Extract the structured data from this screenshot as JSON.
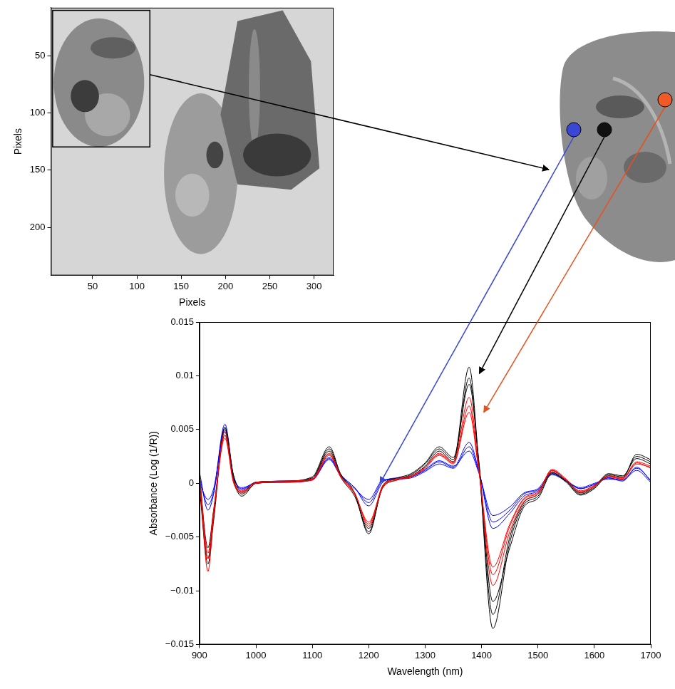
{
  "chart_data": [
    {
      "type": "image",
      "xlabel": "Pixels",
      "ylabel": "Pixels",
      "xlim": [
        3,
        322
      ],
      "xticks": [
        50,
        100,
        150,
        200,
        250,
        300
      ],
      "ylim": [
        242,
        8
      ],
      "yticks": [
        50,
        100,
        150,
        200
      ],
      "grid": false
    },
    {
      "type": "line",
      "xlabel": "Wavelength (nm)",
      "ylabel": "Absorbance (Log (1/R))",
      "x": [
        900,
        915,
        925,
        945,
        960,
        975,
        1000,
        1050,
        1100,
        1130,
        1150,
        1175,
        1200,
        1225,
        1250,
        1275,
        1300,
        1325,
        1350,
        1378,
        1395,
        1420,
        1450,
        1475,
        1500,
        1525,
        1550,
        1575,
        1600,
        1625,
        1650,
        1675,
        1700
      ],
      "xlim": [
        900,
        1700
      ],
      "xticks": [
        900,
        1000,
        1100,
        1200,
        1300,
        1400,
        1500,
        1600,
        1700
      ],
      "ylim": [
        -0.015,
        0.015
      ],
      "yticks": [
        {
          "value": -0.015,
          "label": "−0.015"
        },
        {
          "value": -0.01,
          "label": "−0.01"
        },
        {
          "value": -0.005,
          "label": "−0.005"
        },
        0,
        0.005,
        0.01,
        0.015
      ],
      "grid": false,
      "series": [
        {
          "color": "#ff0000",
          "values": [
            0.001,
            -0.0082,
            -0.003,
            0.0048,
            0.0002,
            -0.0008,
            0,
            0.0002,
            0.0004,
            0.0028,
            0.0007,
            -0.0009,
            -0.004,
            -0.0003,
            0.0004,
            0.0007,
            0.0015,
            0.0028,
            0.002,
            0.008,
            0.0015,
            -0.0095,
            -0.0045,
            -0.0017,
            -0.001,
            0.0013,
            0.0004,
            -0.0008,
            -0.0003,
            0.0007,
            0.0005,
            0.002,
            0.0016
          ]
        },
        {
          "color": "#ff0000",
          "values": [
            0,
            -0.007,
            -0.0028,
            0.0042,
            0.0001,
            -0.0009,
            0,
            0.0001,
            0.0003,
            0.0026,
            0.0006,
            -0.001,
            -0.0036,
            -0.0004,
            0.0003,
            0.0006,
            0.0014,
            0.0026,
            0.0018,
            0.0072,
            0.0013,
            -0.0085,
            -0.004,
            -0.0015,
            -0.0009,
            0.0011,
            0.0003,
            -0.0008,
            -0.0002,
            0.0006,
            0.0004,
            0.0018,
            0.0015
          ]
        },
        {
          "color": "#ff0000",
          "values": [
            0.0008,
            -0.0065,
            -0.0025,
            0.0045,
            0.0003,
            -0.0007,
            0.0001,
            0.0002,
            0.0004,
            0.0027,
            0.0007,
            -0.0009,
            -0.0038,
            -0.0002,
            0.0004,
            0.0006,
            0.0015,
            0.0027,
            0.0019,
            0.0066,
            0.0012,
            -0.0078,
            -0.0038,
            -0.0014,
            -0.0008,
            0.0012,
            0.0003,
            -0.0007,
            -0.0002,
            0.0006,
            0.0004,
            0.0019,
            0.0014
          ]
        },
        {
          "color": "#000000",
          "values": [
            0,
            -0.007,
            -0.003,
            0.005,
            0.0005,
            -0.001,
            0,
            0.0002,
            0.0005,
            0.0032,
            0.0008,
            -0.001,
            -0.0045,
            -0.0003,
            0.0004,
            0.0008,
            0.0018,
            0.0032,
            0.0022,
            0.0108,
            0.002,
            -0.0135,
            -0.0055,
            -0.002,
            -0.0012,
            0.001,
            0.0002,
            -0.001,
            -0.0004,
            0.0008,
            0.0006,
            0.0025,
            0.002
          ]
        },
        {
          "color": "#000000",
          "values": [
            0.0005,
            -0.006,
            -0.0025,
            0.0045,
            0.0003,
            -0.0012,
            0,
            0.0001,
            0.0004,
            0.003,
            0.0006,
            -0.0012,
            -0.0042,
            -0.0004,
            0.0003,
            0.0007,
            0.0016,
            0.003,
            0.002,
            0.0098,
            0.0018,
            -0.0122,
            -0.005,
            -0.0018,
            -0.001,
            0.0012,
            0.0003,
            -0.0009,
            -0.0003,
            0.0009,
            0.0007,
            0.0023,
            0.0018
          ]
        },
        {
          "color": "#000000",
          "values": [
            -0.0005,
            -0.0075,
            -0.0035,
            0.0052,
            0.0008,
            -0.0008,
            0.0001,
            0.0002,
            0.0006,
            0.0034,
            0.0009,
            -0.0009,
            -0.0047,
            -0.0002,
            0.0005,
            0.0009,
            0.0019,
            0.0034,
            0.0024,
            0.0092,
            0.0022,
            -0.011,
            -0.006,
            -0.0022,
            -0.0014,
            0.0009,
            0.0001,
            -0.0011,
            -0.0005,
            0.0007,
            0.0005,
            0.0027,
            0.0022
          ]
        },
        {
          "color": "#0000ff",
          "values": [
            0.0005,
            -0.002,
            -0.0008,
            0.0055,
            0.0008,
            -0.0005,
            0.0001,
            0.0002,
            0.0004,
            0.0024,
            0.0008,
            -0.0004,
            -0.0018,
            0.0002,
            0.0004,
            0.0006,
            0.0012,
            0.002,
            0.0015,
            0.0038,
            0.0012,
            -0.0042,
            -0.0028,
            -0.0012,
            -0.0007,
            0.0009,
            0.0003,
            -0.0005,
            -0.0001,
            0.0005,
            0.0003,
            0.0014,
            0.0003
          ]
        },
        {
          "color": "#0000ff",
          "values": [
            0,
            -0.0015,
            -0.0005,
            0.0048,
            0.0006,
            -0.0004,
            0,
            0.0001,
            0.0003,
            0.0022,
            0.0007,
            -0.0005,
            -0.0015,
            0.0003,
            0.0004,
            0.0005,
            0.0011,
            0.0018,
            0.0014,
            0.0034,
            0.0011,
            -0.0036,
            -0.0025,
            -0.001,
            -0.0006,
            0.0008,
            0.0002,
            -0.0004,
            0,
            0.0004,
            0.0003,
            0.0012,
            0.0001
          ]
        },
        {
          "color": "#0000ff",
          "values": [
            0.001,
            -0.0025,
            -0.001,
            0.0052,
            0.0007,
            -0.0006,
            0.0001,
            0.0002,
            0.0004,
            0.0023,
            0.0008,
            -0.0004,
            -0.0021,
            0.0001,
            0.0005,
            0.0006,
            0.0013,
            0.0021,
            0.0016,
            0.003,
            0.001,
            -0.003,
            -0.0022,
            -0.0009,
            -0.0005,
            0.001,
            0.0002,
            -0.0005,
            -0.0001,
            0.0005,
            0.0002,
            0.0015,
            0.0002
          ]
        }
      ]
    }
  ]
}
